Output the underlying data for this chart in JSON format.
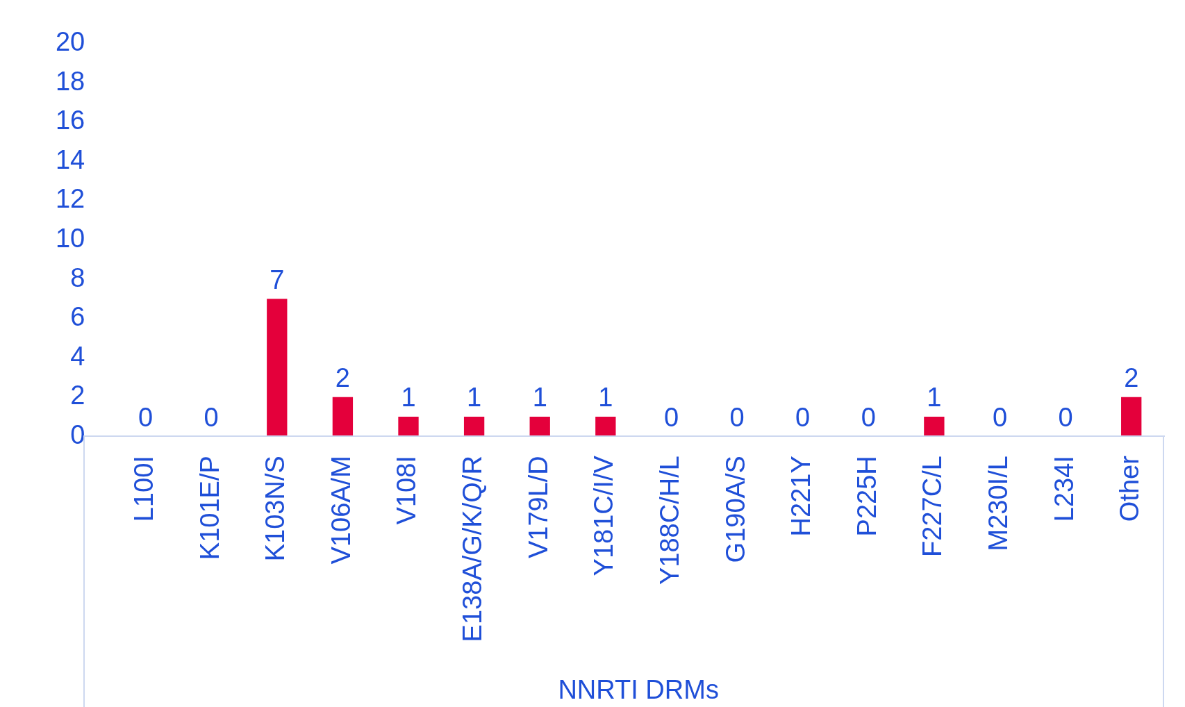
{
  "chart_data": {
    "type": "bar",
    "xlabel": "NNRTI DRMs",
    "categories": [
      "L100I",
      "K101E/P",
      "K103N/S",
      "V106A/M",
      "V108I",
      "E138A/G/K/Q/R",
      "V179L/D",
      "Y181C/I/V",
      "Y188C/H/L",
      "G190A/S",
      "H221Y",
      "P225H",
      "F227C/L",
      "M230I/L",
      "L234I",
      "Other"
    ],
    "values": [
      0,
      0,
      7,
      2,
      1,
      1,
      1,
      1,
      0,
      0,
      0,
      0,
      1,
      0,
      0,
      2
    ],
    "color": "#e4003b",
    "ylim": [
      0,
      20
    ],
    "yticks": [
      0,
      2,
      4,
      6,
      8,
      10,
      12,
      14,
      16,
      18,
      20
    ],
    "grid": false,
    "legend": false,
    "data_labels": true
  }
}
